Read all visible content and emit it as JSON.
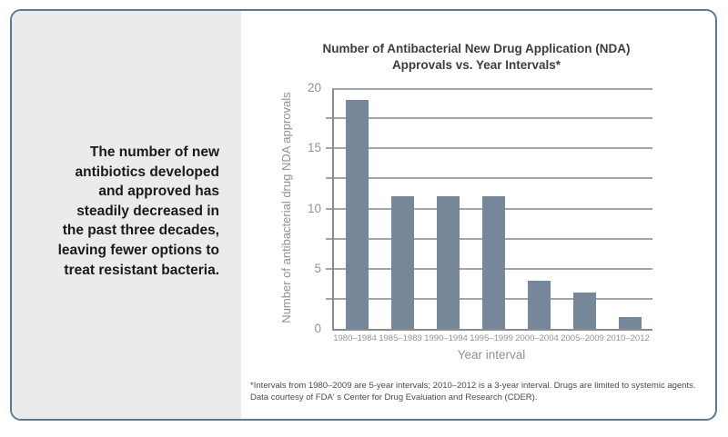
{
  "sidebar": {
    "lines": [
      "The number of new",
      "antibiotics developed",
      "and approved has",
      "steadily decreased in",
      "the past three decades,",
      "leaving fewer options to",
      "treat resistant bacteria."
    ]
  },
  "chart_data": {
    "type": "bar",
    "title": "Number of Antibacterial New Drug Application (NDA) Approvals vs. Year Intervals*",
    "title_lines": [
      "Number of Antibacterial New Drug Application (NDA)",
      "Approvals vs. Year Intervals*"
    ],
    "categories": [
      "1980–1984",
      "1985–1989",
      "1990–1994",
      "1995–1999",
      "2000–2004",
      "2005–2009",
      "2010–2012"
    ],
    "values": [
      19,
      11,
      11,
      11,
      4,
      3,
      1
    ],
    "xlabel": "Year interval",
    "ylabel": "Number of antibacterial drug NDA approvals",
    "ylim": [
      0,
      20
    ],
    "yticks": [
      0,
      5,
      10,
      15,
      20
    ],
    "grid_step": 2.5,
    "grid": true,
    "legend_position": "none",
    "bar_color": "#76879A"
  },
  "footnote": {
    "line1": "*Intervals from 1980–2009 are 5-year intervals; 2010–2012 is a 3-year interval. Drugs are limited to systemic agents.",
    "line2": "Data courtesy of FDA' s Center for Drug Evaluation and Research (CDER)."
  },
  "colors": {
    "card_border": "#5d7a92",
    "sidebar_bg": "#e9ebed",
    "bar": "#76879A",
    "gridline": "#a2a5a8",
    "axis_line": "#8a8d90",
    "muted_text": "#8e9297",
    "title_text": "#3d3d3d",
    "sidebar_text": "#1a1a1a",
    "footnote_text": "#4a4a4a"
  }
}
